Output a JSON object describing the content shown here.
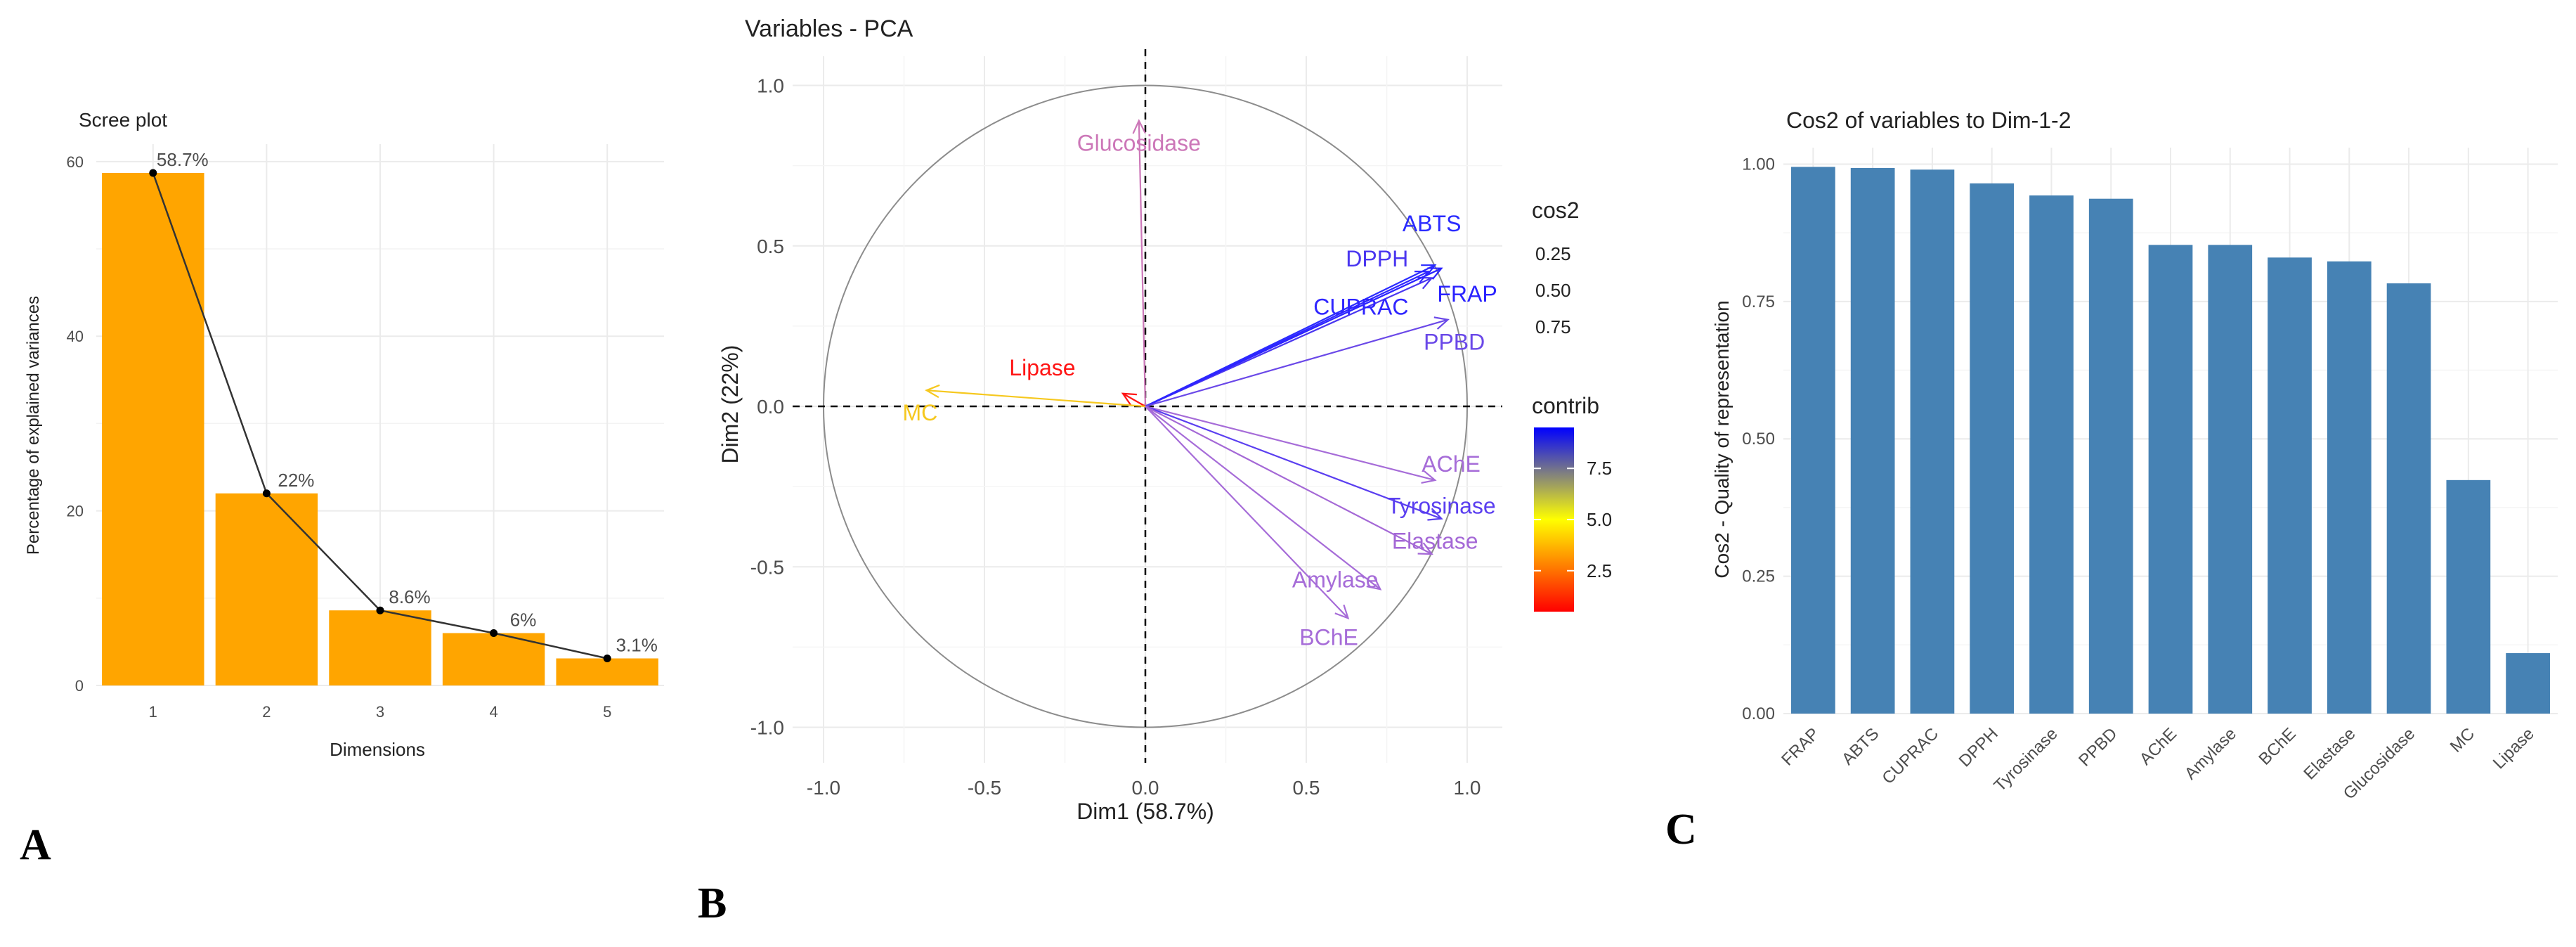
{
  "chart_data": [
    {
      "panel": "A",
      "type": "bar",
      "title": "Scree plot",
      "xlabel": "Dimensions",
      "ylabel": "Percentage of explained variances",
      "categories": [
        "1",
        "2",
        "3",
        "4",
        "5"
      ],
      "values": [
        58.7,
        22,
        8.6,
        6,
        3.1
      ],
      "data_labels": [
        "58.7%",
        "22%",
        "8.6%",
        "6%",
        "3.1%"
      ],
      "yticks": [
        0,
        20,
        40,
        60
      ],
      "ylim": [
        0,
        62
      ],
      "bar_color": "#FFA500",
      "line_color": "#333333",
      "grid": true
    },
    {
      "panel": "B",
      "type": "scatter",
      "subtype": "pca-variable-correlation-circle",
      "title": "Variables - PCA",
      "xlabel": "Dim1 (58.7%)",
      "ylabel": "Dim2 (22%)",
      "xlim": [
        -1.0,
        1.0
      ],
      "ylim": [
        -1.0,
        1.0
      ],
      "xticks": [
        "-1.0",
        "-0.5",
        "0.0",
        "0.5",
        "1.0"
      ],
      "yticks": [
        "-1.0",
        "-0.5",
        "0.0",
        "0.5",
        "1.0"
      ],
      "variables": [
        {
          "name": "Glucosidase",
          "x": -0.02,
          "y": 0.89,
          "color": "#CC77B8"
        },
        {
          "name": "ABTS",
          "x": 0.9,
          "y": 0.44,
          "color": "#2A2BFF"
        },
        {
          "name": "DPPH",
          "x": 0.89,
          "y": 0.4,
          "color": "#4A36F0"
        },
        {
          "name": "FRAP",
          "x": 0.92,
          "y": 0.43,
          "color": "#2A22FF"
        },
        {
          "name": "CUPRAC",
          "x": 0.88,
          "y": 0.42,
          "color": "#2F25FF"
        },
        {
          "name": "PPBD",
          "x": 0.94,
          "y": 0.27,
          "color": "#6A48E8"
        },
        {
          "name": "Lipase",
          "x": -0.07,
          "y": 0.04,
          "color": "#FF1515"
        },
        {
          "name": "MC",
          "x": -0.68,
          "y": 0.05,
          "color": "#F6C81E"
        },
        {
          "name": "AChE",
          "x": 0.9,
          "y": -0.23,
          "color": "#A66CD8"
        },
        {
          "name": "Tyrosinase",
          "x": 0.92,
          "y": -0.35,
          "color": "#5A3EF0"
        },
        {
          "name": "Elastase",
          "x": 0.89,
          "y": -0.46,
          "color": "#A468D6"
        },
        {
          "name": "Amylase",
          "x": 0.73,
          "y": -0.57,
          "color": "#A66CD8"
        },
        {
          "name": "BChE",
          "x": 0.63,
          "y": -0.66,
          "color": "#A66CD8"
        }
      ],
      "label_positions": {
        "Glucosidase": [
          -0.02,
          0.82
        ],
        "ABTS": [
          0.89,
          0.57
        ],
        "DPPH": [
          0.72,
          0.46
        ],
        "CUPRAC": [
          0.67,
          0.31
        ],
        "FRAP": [
          1.0,
          0.35
        ],
        "PPBD": [
          0.96,
          0.2
        ],
        "Lipase": [
          -0.32,
          0.12
        ],
        "MC": [
          -0.7,
          -0.02
        ],
        "AChE": [
          0.95,
          -0.18
        ],
        "Tyrosinase": [
          0.92,
          -0.31
        ],
        "Elastase": [
          0.9,
          -0.42
        ],
        "Amylase": [
          0.59,
          -0.54
        ],
        "BChE": [
          0.57,
          -0.72
        ]
      },
      "legend_cos2": {
        "title": "cos2",
        "labels": [
          "0.25",
          "0.50",
          "0.75"
        ]
      },
      "legend_contrib": {
        "title": "contrib",
        "labels": [
          "7.5",
          "5.0",
          "2.5"
        ],
        "gradient": [
          "#0000FF",
          "#FFFF00",
          "#FF0000"
        ],
        "range": [
          0.5,
          9.5
        ]
      },
      "grid": true
    },
    {
      "panel": "C",
      "type": "bar",
      "title": "Cos2 of variables to Dim-1-2",
      "xlabel": "",
      "ylabel": "Cos2 - Quality of representation",
      "categories": [
        "FRAP",
        "ABTS",
        "CUPRAC",
        "DPPH",
        "Tyrosinase",
        "PPBD",
        "AChE",
        "Amylase",
        "BChE",
        "Elastase",
        "Glucosidase",
        "MC",
        "Lipase"
      ],
      "values": [
        0.995,
        0.993,
        0.99,
        0.965,
        0.943,
        0.937,
        0.853,
        0.853,
        0.83,
        0.823,
        0.783,
        0.425,
        0.11
      ],
      "yticks": [
        "0.00",
        "0.25",
        "0.50",
        "0.75",
        "1.00"
      ],
      "ylim": [
        0,
        1.03
      ],
      "bar_color": "#4682B4",
      "grid": true
    }
  ],
  "panels": {
    "a": "A",
    "b": "B",
    "c": "C"
  }
}
